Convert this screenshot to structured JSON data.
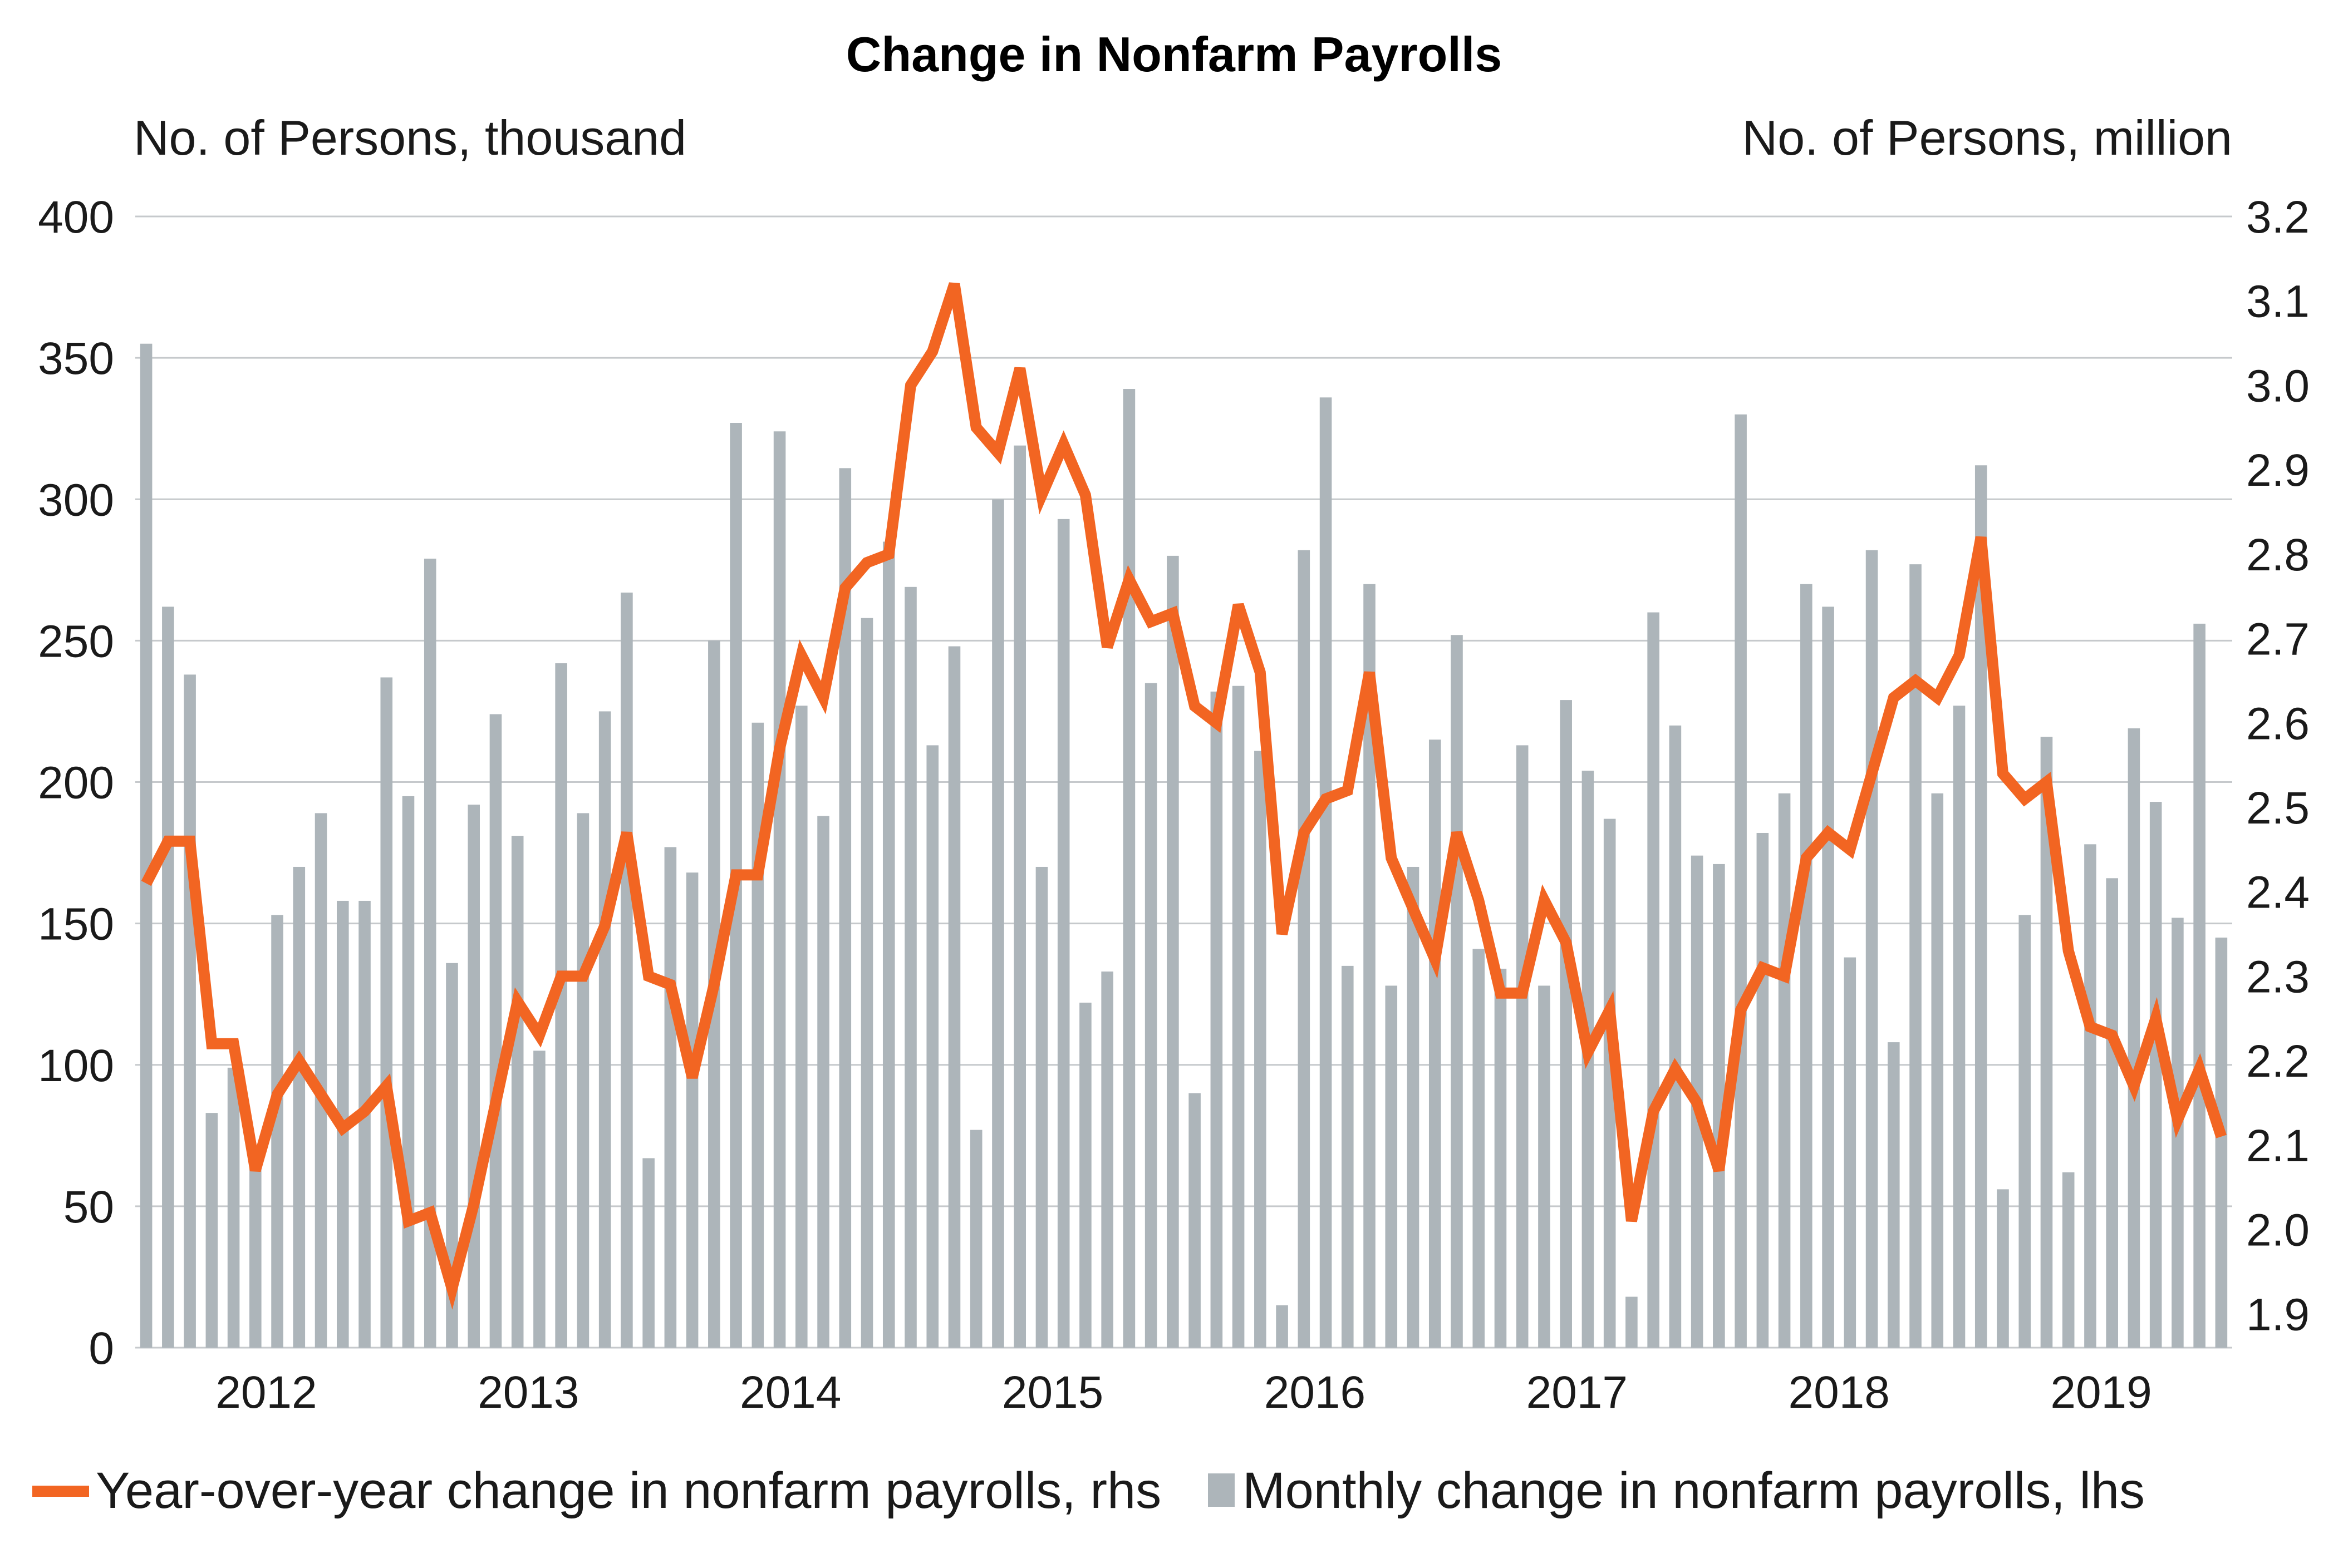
{
  "chart_data": {
    "type": "bar",
    "title": "Change in Nonfarm Payrolls",
    "left_axis_label": "No. of Persons, thousand",
    "right_axis_label": "No. of Persons, million",
    "left_ticks": [
      "0",
      "50",
      "100",
      "150",
      "200",
      "250",
      "300",
      "350",
      "400"
    ],
    "right_ticks": [
      "1.9",
      "2.0",
      "2.1",
      "2.2",
      "2.3",
      "2.4",
      "2.5",
      "2.6",
      "2.7",
      "2.8",
      "2.9",
      "3.0",
      "3.1",
      "3.2"
    ],
    "year_labels": [
      "2012",
      "2013",
      "2014",
      "2015",
      "2016",
      "2017",
      "2018",
      "2019"
    ],
    "ylim_left": [
      0,
      400
    ],
    "ylim_right": [
      1.86,
      3.2
    ],
    "grid": true,
    "legend_position": "bottom",
    "x_start": "2011-08",
    "x_end": "2019-07",
    "series": [
      {
        "name": "Year-over-year change in nonfarm payrolls, rhs",
        "type": "line",
        "axis": "right",
        "color": "#f26522",
        "values": [
          2.41,
          2.46,
          2.46,
          2.22,
          2.22,
          2.07,
          2.16,
          2.2,
          2.16,
          2.12,
          2.14,
          2.17,
          2.01,
          2.02,
          1.93,
          2.03,
          2.15,
          2.27,
          2.23,
          2.3,
          2.3,
          2.36,
          2.47,
          2.3,
          2.29,
          2.18,
          2.29,
          2.42,
          2.42,
          2.57,
          2.68,
          2.63,
          2.76,
          2.79,
          2.8,
          3.0,
          3.04,
          3.12,
          2.95,
          2.92,
          3.02,
          2.87,
          2.93,
          2.87,
          2.69,
          2.77,
          2.72,
          2.73,
          2.62,
          2.6,
          2.74,
          2.66,
          2.35,
          2.47,
          2.51,
          2.52,
          2.66,
          2.44,
          2.38,
          2.32,
          2.47,
          2.39,
          2.28,
          2.28,
          2.39,
          2.34,
          2.21,
          2.26,
          2.01,
          2.14,
          2.19,
          2.15,
          2.07,
          2.26,
          2.31,
          2.3,
          2.44,
          2.47,
          2.45,
          2.54,
          2.63,
          2.65,
          2.63,
          2.68,
          2.82,
          2.54,
          2.51,
          2.53,
          2.33,
          2.24,
          2.23,
          2.17,
          2.25,
          2.13,
          2.19,
          2.11
        ]
      },
      {
        "name": "Monthly change in nonfarm payrolls, lhs",
        "type": "bar",
        "axis": "left",
        "color": "#adb5ba",
        "values": [
          355,
          262,
          238,
          83,
          99,
          68,
          153,
          170,
          189,
          158,
          158,
          237,
          195,
          279,
          136,
          192,
          224,
          181,
          105,
          242,
          189,
          225,
          267,
          67,
          177,
          168,
          250,
          327,
          221,
          324,
          227,
          188,
          311,
          258,
          285,
          269,
          213,
          248,
          77,
          300,
          319,
          170,
          293,
          122,
          133,
          339,
          235,
          280,
          90,
          232,
          234,
          211,
          15,
          282,
          336,
          135,
          270,
          128,
          170,
          215,
          252,
          141,
          134,
          213,
          128,
          229,
          204,
          187,
          18,
          260,
          220,
          174,
          171,
          330,
          182,
          196,
          270,
          262,
          138,
          282,
          108,
          277,
          196,
          227,
          312,
          56,
          153,
          216,
          62,
          178,
          166,
          219,
          193,
          152,
          256,
          145
        ]
      }
    ]
  }
}
